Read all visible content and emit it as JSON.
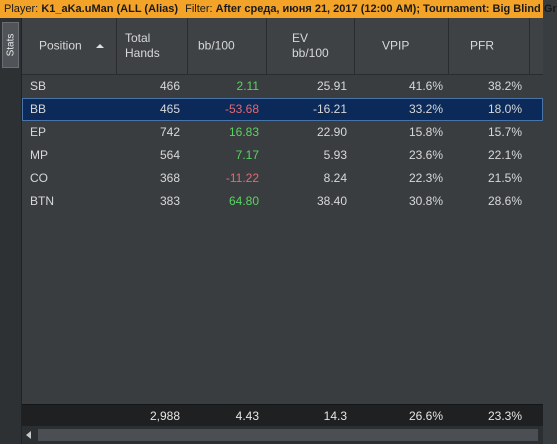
{
  "topbar": {
    "player_label": "Player:",
    "player_value": "K1_aKa.uMan (ALL (Alias)",
    "filter_label": "Filter:",
    "filter_value": "After среда, июня 21, 2017 (12:00 AM); Tournament: Big Blind Gr"
  },
  "side_tab": {
    "label": "Stats"
  },
  "columns": [
    {
      "label": "Position"
    },
    {
      "label_line1": "Total",
      "label_line2": "Hands"
    },
    {
      "label": "bb/100"
    },
    {
      "label_line1": "EV",
      "label_line2": "bb/100"
    },
    {
      "label": "VPIP"
    },
    {
      "label": "PFR"
    }
  ],
  "rows": [
    {
      "position": "SB",
      "hands": "466",
      "bb100": "2.11",
      "ev_bb100": "25.91",
      "vpip": "41.6%",
      "pfr": "38.2%"
    },
    {
      "position": "BB",
      "hands": "465",
      "bb100": "-53.68",
      "ev_bb100": "-16.21",
      "vpip": "33.2%",
      "pfr": "18.0%"
    },
    {
      "position": "EP",
      "hands": "742",
      "bb100": "16.83",
      "ev_bb100": "22.90",
      "vpip": "15.8%",
      "pfr": "15.7%"
    },
    {
      "position": "MP",
      "hands": "564",
      "bb100": "7.17",
      "ev_bb100": "5.93",
      "vpip": "23.6%",
      "pfr": "22.1%"
    },
    {
      "position": "CO",
      "hands": "368",
      "bb100": "-11.22",
      "ev_bb100": "8.24",
      "vpip": "22.3%",
      "pfr": "21.5%"
    },
    {
      "position": "BTN",
      "hands": "383",
      "bb100": "64.80",
      "ev_bb100": "38.40",
      "vpip": "30.8%",
      "pfr": "28.6%"
    }
  ],
  "selected_row": "BB",
  "totals": {
    "hands": "2,988",
    "bb100": "4.43",
    "ev_bb100": "14.3",
    "vpip": "26.6%",
    "pfr": "23.3%"
  },
  "colors": {
    "topbar": "#f3a328",
    "positive": "#58d460",
    "negative": "#e36a72",
    "selected": "#0b2a5a"
  }
}
